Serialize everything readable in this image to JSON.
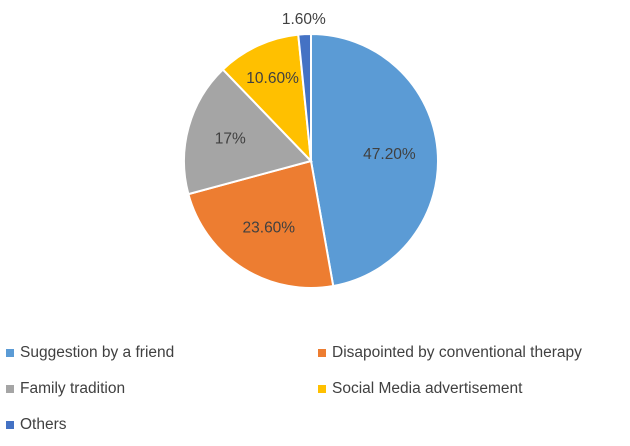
{
  "chart_data": {
    "type": "pie",
    "title": "",
    "categories": [
      "Suggestion by a friend",
      "Disapointed by conventional therapy",
      "Family tradition",
      "Social Media advertisement",
      "Others"
    ],
    "values": [
      47.2,
      23.6,
      17,
      10.6,
      1.6
    ],
    "data_labels": [
      "47.20%",
      "23.60%",
      "17%",
      "10.60%",
      "1.60%"
    ],
    "colors": [
      "#5B9BD5",
      "#ED7D31",
      "#A5A5A5",
      "#FFC000",
      "#4472C4"
    ],
    "start_angle": "12 o'clock",
    "direction": "clockwise",
    "legend_position": "bottom"
  }
}
